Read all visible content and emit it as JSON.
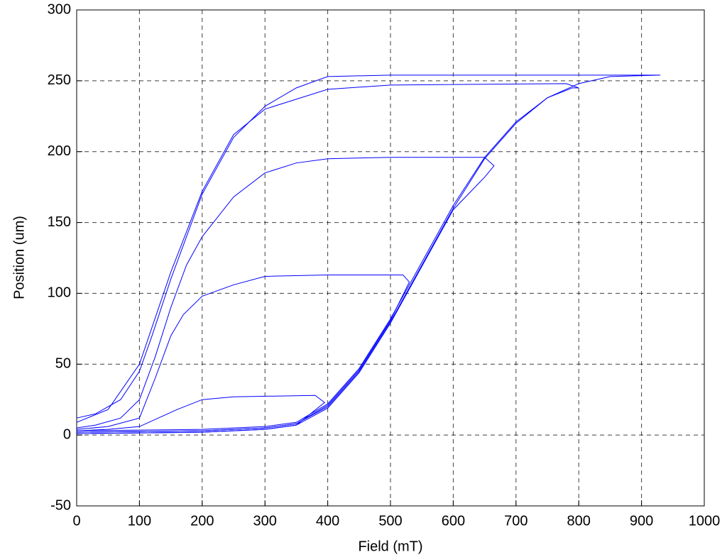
{
  "chart_data": {
    "type": "line",
    "xlabel": "Field (mT)",
    "ylabel": "Position (um)",
    "xlim": [
      0,
      1000
    ],
    "ylim": [
      -50,
      300
    ],
    "xticks": [
      0,
      100,
      200,
      300,
      400,
      500,
      600,
      700,
      800,
      900,
      1000
    ],
    "yticks": [
      -50,
      0,
      50,
      100,
      150,
      200,
      250,
      300
    ],
    "grid": true,
    "series": [
      {
        "color": "#0000ff",
        "x": [
          0,
          200,
          300,
          350,
          400,
          450,
          500,
          550,
          600,
          650,
          700,
          750,
          800,
          850,
          930,
          900,
          500,
          400,
          350,
          300,
          250,
          200,
          150,
          120,
          100,
          70,
          30,
          0
        ],
        "values": [
          2,
          3,
          5,
          8,
          20,
          45,
          80,
          120,
          160,
          195,
          220,
          238,
          248,
          253,
          254,
          254,
          254,
          253,
          245,
          232,
          210,
          170,
          110,
          70,
          45,
          25,
          15,
          12
        ]
      },
      {
        "color": "#0000ff",
        "x": [
          0,
          200,
          300,
          350,
          400,
          450,
          500,
          550,
          600,
          650,
          700,
          750,
          790,
          800,
          780,
          500,
          400,
          300,
          250,
          200,
          150,
          100,
          50,
          0
        ],
        "values": [
          3,
          4,
          6,
          9,
          22,
          47,
          82,
          122,
          162,
          196,
          221,
          238,
          245,
          245,
          248,
          247,
          244,
          230,
          212,
          172,
          115,
          50,
          18,
          9
        ]
      },
      {
        "color": "#0000ff",
        "x": [
          0,
          200,
          300,
          350,
          400,
          450,
          500,
          550,
          600,
          650,
          665,
          650,
          500,
          400,
          350,
          300,
          250,
          200,
          175,
          150,
          125,
          100,
          70,
          30,
          0
        ],
        "values": [
          1,
          2,
          4,
          7,
          19,
          44,
          79,
          119,
          159,
          182,
          190,
          196,
          196,
          195,
          192,
          185,
          168,
          140,
          120,
          90,
          55,
          25,
          12,
          7,
          5
        ]
      },
      {
        "color": "#0000ff",
        "x": [
          0,
          200,
          300,
          350,
          400,
          450,
          500,
          530,
          520,
          400,
          300,
          250,
          200,
          170,
          150,
          125,
          100,
          50,
          0
        ],
        "values": [
          2,
          3,
          5,
          8,
          21,
          46,
          81,
          108,
          113,
          113,
          112,
          106,
          98,
          85,
          70,
          40,
          12,
          6,
          4
        ]
      },
      {
        "color": "#0000ff",
        "x": [
          0,
          200,
          300,
          350,
          395,
          380,
          250,
          200,
          160,
          130,
          100,
          50,
          0
        ],
        "values": [
          1,
          2,
          4,
          7,
          23,
          28,
          27,
          25,
          18,
          12,
          6,
          4,
          3
        ]
      }
    ]
  }
}
